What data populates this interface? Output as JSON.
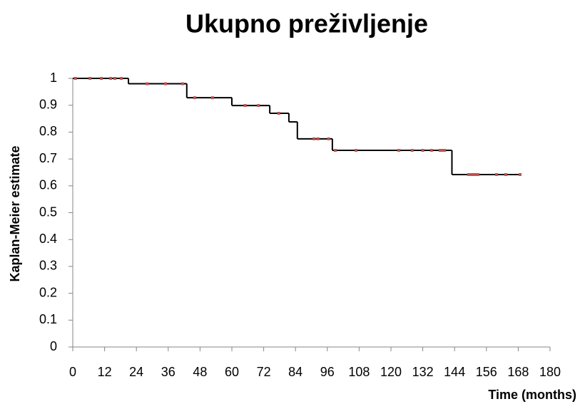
{
  "chart_data": {
    "type": "step",
    "title": "Ukupno preživljenje",
    "xlabel": "Time (months)",
    "ylabel": "Kaplan-Meier estimate",
    "x": [
      0,
      21,
      43,
      60,
      74.3,
      81.5,
      84.7,
      97.9,
      143,
      168.7
    ],
    "values": [
      1,
      0.98,
      0.928,
      0.899,
      0.87,
      0.838,
      0.775,
      0.732,
      0.642,
      0.642
    ],
    "color": "#000000",
    "censored": {
      "color": "#c0504d",
      "x": [
        1,
        6.5,
        10.8,
        14.3,
        15.9,
        18.3,
        28,
        35,
        41.4,
        46,
        52.7,
        65,
        70,
        77.7,
        91,
        92.5,
        96.5,
        99,
        106.8,
        123,
        128,
        132,
        135.3,
        138.5,
        139.4,
        140.2,
        149.3,
        150.4,
        151.2,
        152,
        152.8,
        159.8,
        163.3,
        168.7
      ],
      "values": [
        1,
        1,
        1,
        1,
        1,
        1,
        0.98,
        0.98,
        0.98,
        0.928,
        0.928,
        0.899,
        0.899,
        0.87,
        0.775,
        0.775,
        0.775,
        0.732,
        0.732,
        0.732,
        0.732,
        0.732,
        0.732,
        0.732,
        0.732,
        0.732,
        0.642,
        0.642,
        0.642,
        0.642,
        0.642,
        0.642,
        0.642,
        0.642
      ]
    },
    "xlim": [
      0,
      180
    ],
    "xticks": [
      0,
      12,
      24,
      36,
      48,
      60,
      72,
      84,
      96,
      108,
      120,
      132,
      144,
      156,
      168,
      180
    ],
    "ylim": [
      0,
      1
    ],
    "yticks": [
      0,
      0.1,
      0.2,
      0.3,
      0.4,
      0.5,
      0.6,
      0.7,
      0.8,
      0.9,
      1
    ],
    "grid": false
  }
}
